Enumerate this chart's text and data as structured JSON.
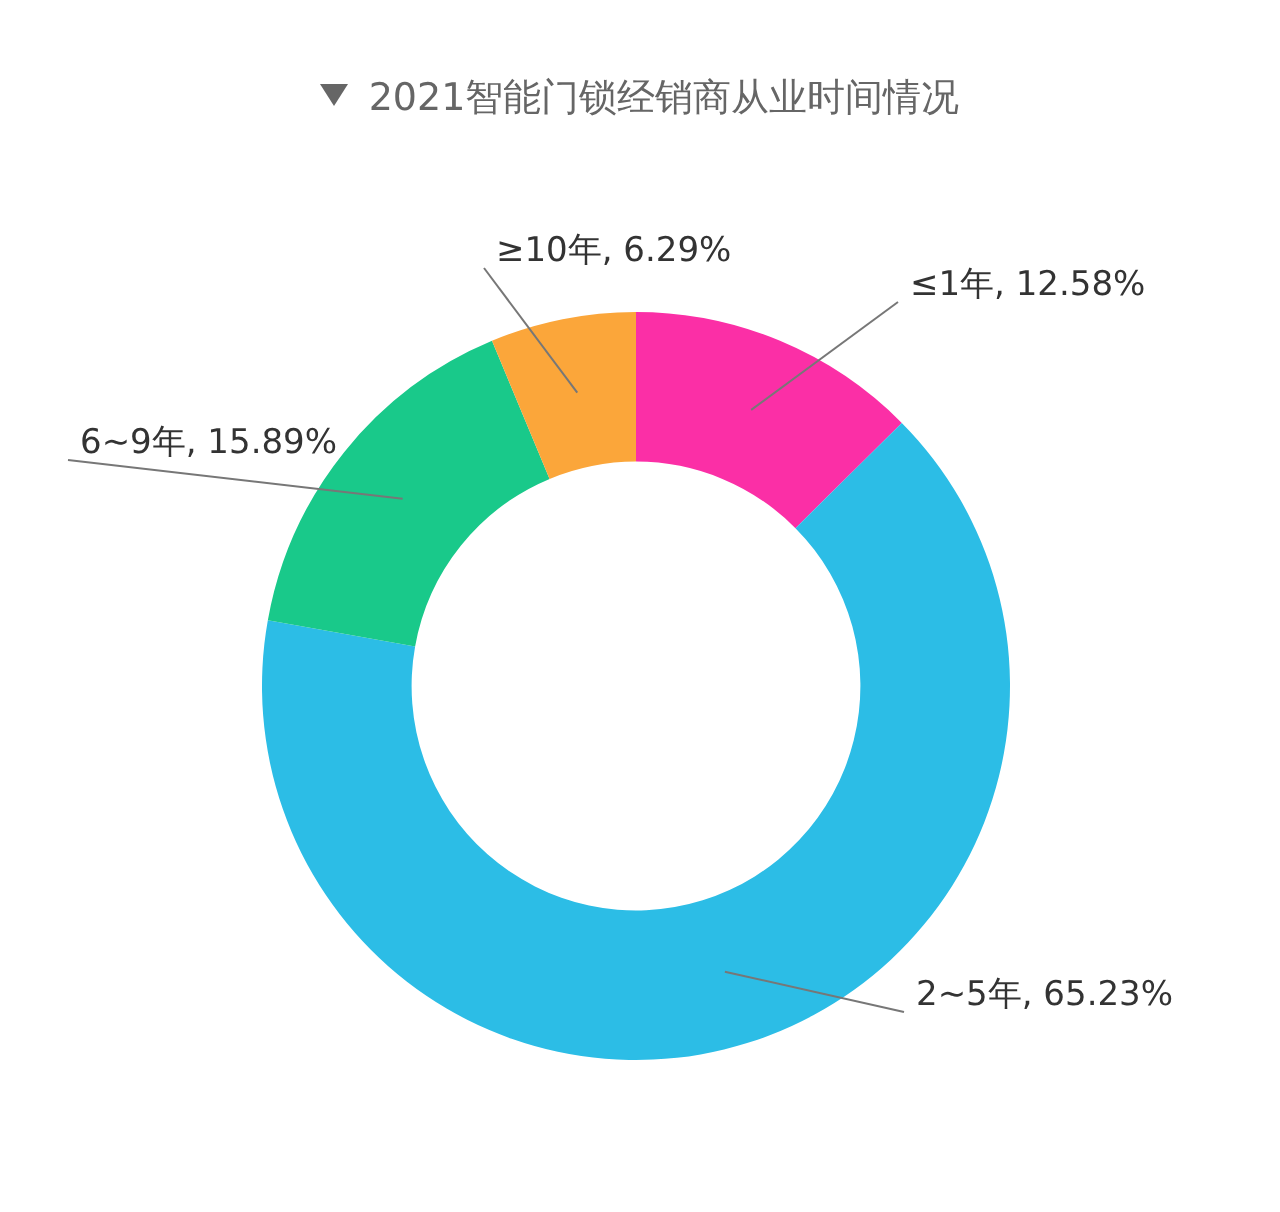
{
  "chart_data": {
    "type": "donut",
    "title": "2021智能门锁经销商从业时间情况",
    "categories": [
      "≤1年",
      "2~5年",
      "6~9年",
      "≥10年"
    ],
    "values": [
      12.58,
      65.23,
      15.89,
      6.29
    ],
    "value_labels": [
      "12.58%",
      "65.23%",
      "15.89%",
      "6.29%"
    ],
    "colors": [
      "#fb2fa6",
      "#2cbde6",
      "#19c98a",
      "#fba63a"
    ],
    "legend": false
  }
}
